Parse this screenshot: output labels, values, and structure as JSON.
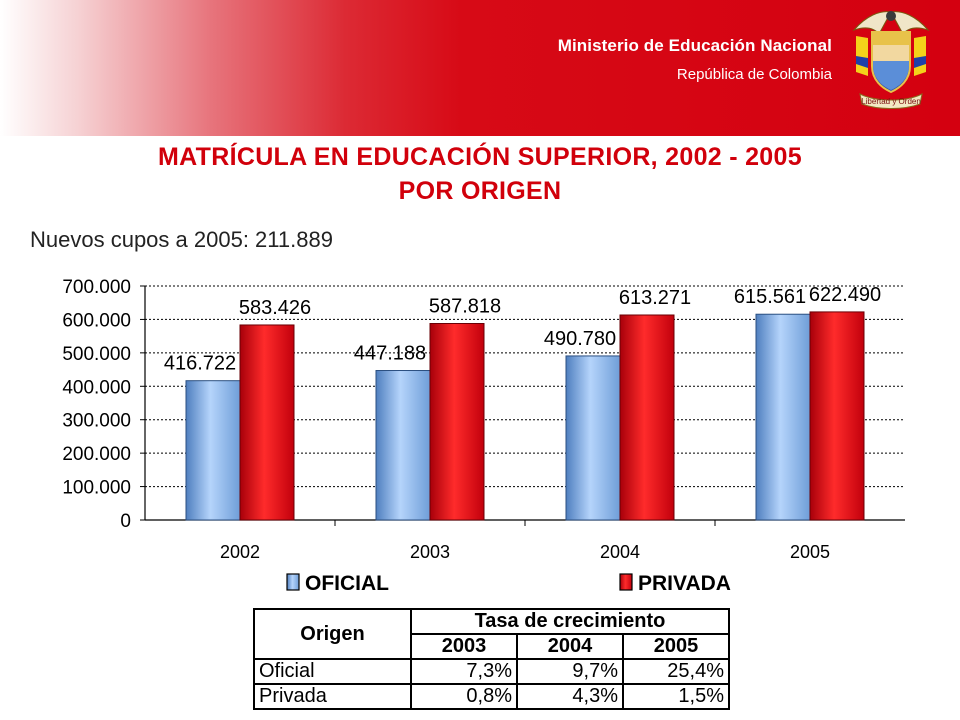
{
  "header": {
    "ministry_name": "Ministerio de Educación Nacional",
    "country": "República de Colombia",
    "crest_motto": "Libertad y Orden",
    "bg_color": "#d40010"
  },
  "slide": {
    "title_line1": "MATRÍCULA EN EDUCACIÓN SUPERIOR, 2002 - 2005",
    "title_line2": "POR ORIGEN",
    "subtitle_prefix": "Nuevos cupos a 2005: ",
    "subtitle_value": "211.889"
  },
  "chart_data": {
    "type": "bar",
    "categories": [
      "2002",
      "2003",
      "2004",
      "2005"
    ],
    "series": [
      {
        "name": "OFICIAL",
        "values": [
          416722,
          447188,
          490780,
          615561
        ],
        "labels": [
          "416.722",
          "447.188",
          "490.780",
          "615.561"
        ],
        "color": "#7fb2ee"
      },
      {
        "name": "PRIVADA",
        "values": [
          583426,
          587818,
          613271,
          622490
        ],
        "labels": [
          "583.426",
          "587.818",
          "613.271",
          "622.490"
        ],
        "color": "#e0000c"
      }
    ],
    "ylim": [
      0,
      700000
    ],
    "yticks": [
      "0",
      "100.000",
      "200.000",
      "300.000",
      "400.000",
      "500.000",
      "600.000",
      "700.000"
    ],
    "grid": true,
    "legend": "bottom"
  },
  "growth_table": {
    "header_origin": "Origen",
    "header_group": "Tasa de crecimiento",
    "years": [
      "2003",
      "2004",
      "2005"
    ],
    "rows": [
      {
        "label": "Oficial",
        "values": [
          "7,3%",
          "9,7%",
          "25,4%"
        ]
      },
      {
        "label": "Privada",
        "values": [
          "0,8%",
          "4,3%",
          "1,5%"
        ]
      }
    ]
  }
}
